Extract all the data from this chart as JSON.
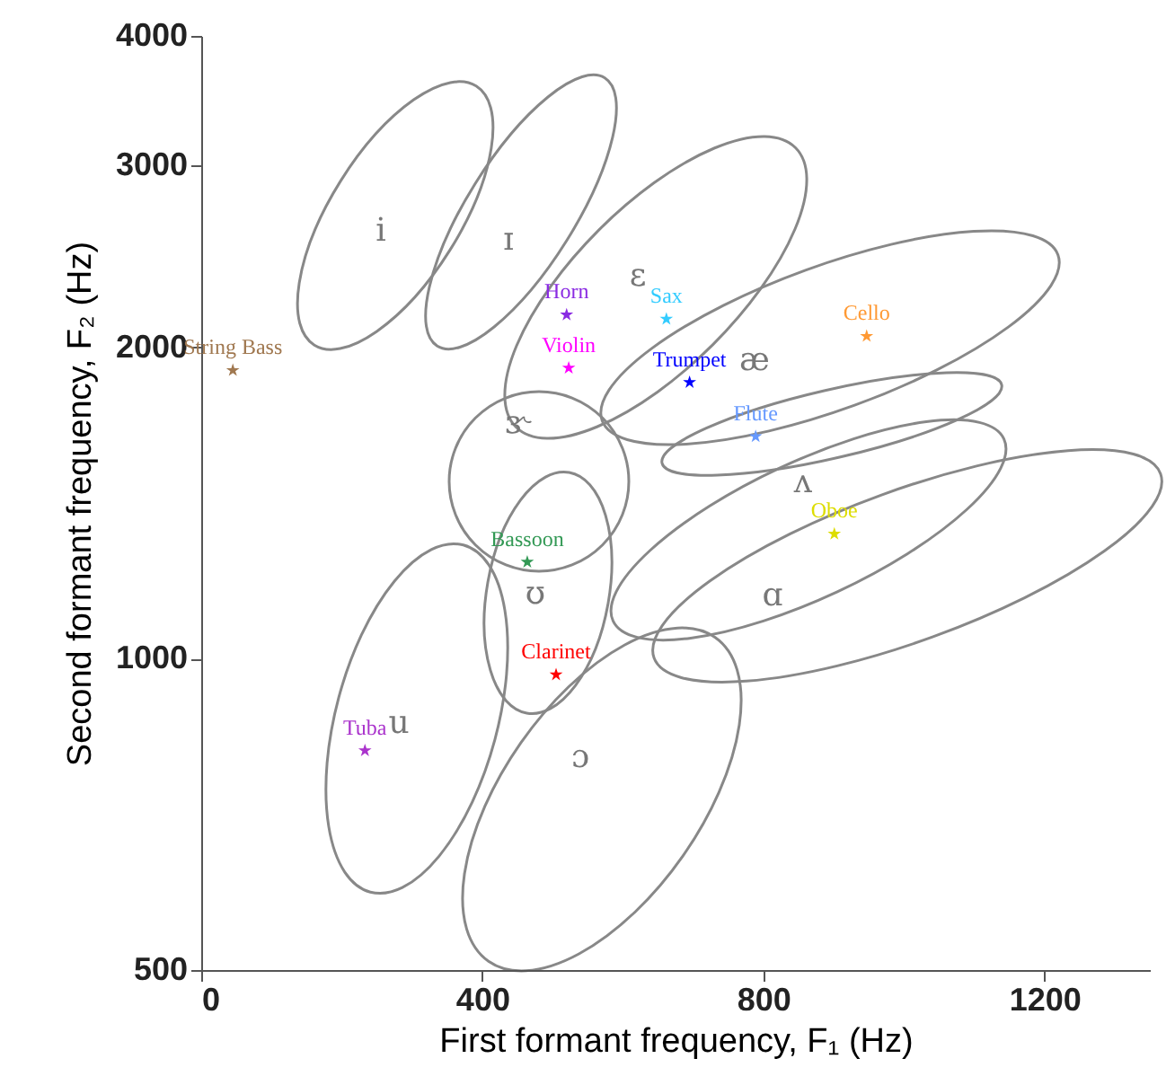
{
  "chart_data": {
    "type": "scatter",
    "xlabel": "First formant frequency, F₁ (Hz)",
    "ylabel": "Second formant frequency, F₂ (Hz)",
    "xlim": [
      0,
      1350
    ],
    "xticks": [
      0,
      400,
      800,
      1200
    ],
    "ylim": [
      500,
      4000
    ],
    "yticks": [
      500,
      1000,
      2000,
      3000,
      4000
    ],
    "log": "y",
    "grid": false,
    "marker": "star",
    "series": [
      {
        "name": "String Bass",
        "color": "#a07850",
        "x": [
          45
        ],
        "values": [
          1900
        ]
      },
      {
        "name": "Horn",
        "color": "#8a2be2",
        "x": [
          520
        ],
        "values": [
          2150
        ]
      },
      {
        "name": "Violin",
        "color": "#ff00ff",
        "x": [
          523
        ],
        "values": [
          1910
        ]
      },
      {
        "name": "Sax",
        "color": "#33ccff",
        "x": [
          662
        ],
        "values": [
          2130
        ]
      },
      {
        "name": "Cello",
        "color": "#ff9933",
        "x": [
          947
        ],
        "values": [
          2050
        ]
      },
      {
        "name": "Trumpet",
        "color": "#0000ff",
        "x": [
          695
        ],
        "values": [
          1850
        ]
      },
      {
        "name": "Flute",
        "color": "#6699ff",
        "x": [
          789
        ],
        "values": [
          1640
        ]
      },
      {
        "name": "Oboe",
        "color": "#dddd00",
        "x": [
          901
        ],
        "values": [
          1320
        ]
      },
      {
        "name": "Bassoon",
        "color": "#339955",
        "x": [
          464
        ],
        "values": [
          1240
        ]
      },
      {
        "name": "Clarinet",
        "color": "#ff0000",
        "x": [
          505
        ],
        "values": [
          965
        ]
      },
      {
        "name": "Tuba",
        "color": "#aa33cc",
        "x": [
          233
        ],
        "values": [
          815
        ]
      }
    ],
    "annotations": [
      "i",
      "ɪ",
      "ɛ",
      "æ",
      "ɝ",
      "ʌ",
      "ɑ",
      "ʊ",
      "u",
      "ɔ"
    ]
  }
}
